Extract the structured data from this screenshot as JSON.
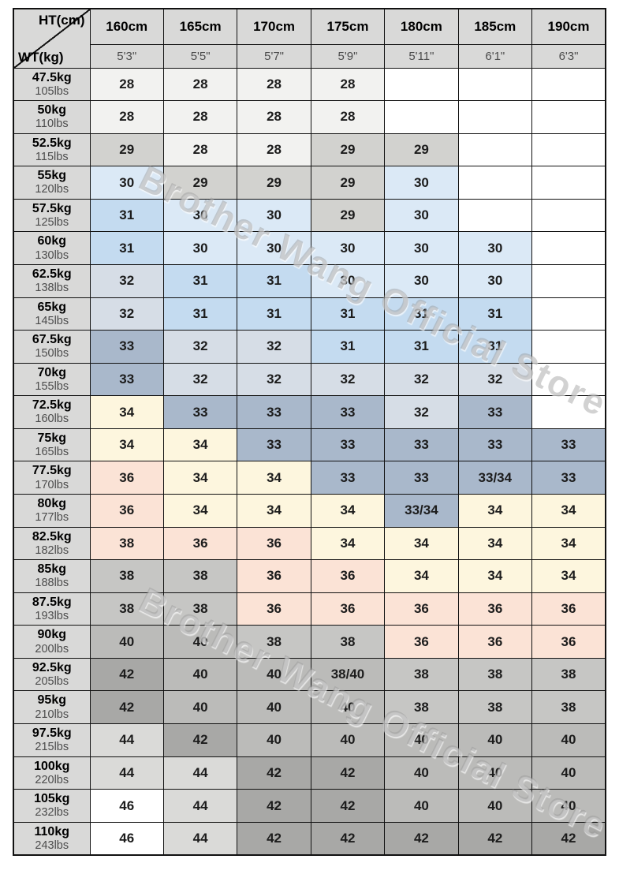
{
  "watermark": {
    "text": "Brother Wang Official Store"
  },
  "palette": {
    "blank": "#ffffff",
    "s28": "#f2f2f0",
    "s29": "#d2d2cf",
    "s30": "#dbe9f6",
    "s31": "#c4dbf0",
    "s32": "#d6dde6",
    "s33": "#a9b8cb",
    "s34": "#fdf6de",
    "s36": "#fbe3d6",
    "g38": "#c6c6c4",
    "g40": "#bbbbb9",
    "g42": "#a8a8a6",
    "g44": "#dadad8",
    "wht": "#ffffff",
    "header_gray": "#d9d9d8"
  },
  "chart_data": {
    "type": "table",
    "title": "Height / Weight size chart",
    "corner": {
      "top": "HT(cm)",
      "bottom": "WT(kg)"
    },
    "columns": [
      {
        "cm": "160cm",
        "ft": "5'3\""
      },
      {
        "cm": "165cm",
        "ft": "5'5\""
      },
      {
        "cm": "170cm",
        "ft": "5'7\""
      },
      {
        "cm": "175cm",
        "ft": "5'9\""
      },
      {
        "cm": "180cm",
        "ft": "5'11\""
      },
      {
        "cm": "185cm",
        "ft": "6'1\""
      },
      {
        "cm": "190cm",
        "ft": "6'3\""
      }
    ],
    "rows": [
      {
        "kg": "47.5kg",
        "lbs": "105lbs",
        "cells": [
          {
            "v": "28",
            "c": "s28"
          },
          {
            "v": "28",
            "c": "s28"
          },
          {
            "v": "28",
            "c": "s28"
          },
          {
            "v": "28",
            "c": "s28"
          },
          {
            "v": "",
            "c": "blank"
          },
          {
            "v": "",
            "c": "blank"
          },
          {
            "v": "",
            "c": "blank"
          }
        ]
      },
      {
        "kg": "50kg",
        "lbs": "110lbs",
        "cells": [
          {
            "v": "28",
            "c": "s28"
          },
          {
            "v": "28",
            "c": "s28"
          },
          {
            "v": "28",
            "c": "s28"
          },
          {
            "v": "28",
            "c": "s28"
          },
          {
            "v": "",
            "c": "blank"
          },
          {
            "v": "",
            "c": "blank"
          },
          {
            "v": "",
            "c": "blank"
          }
        ]
      },
      {
        "kg": "52.5kg",
        "lbs": "115lbs",
        "cells": [
          {
            "v": "29",
            "c": "s29"
          },
          {
            "v": "28",
            "c": "s28"
          },
          {
            "v": "28",
            "c": "s28"
          },
          {
            "v": "29",
            "c": "s29"
          },
          {
            "v": "29",
            "c": "s29"
          },
          {
            "v": "",
            "c": "blank"
          },
          {
            "v": "",
            "c": "blank"
          }
        ]
      },
      {
        "kg": "55kg",
        "lbs": "120lbs",
        "cells": [
          {
            "v": "30",
            "c": "s30"
          },
          {
            "v": "29",
            "c": "s29"
          },
          {
            "v": "29",
            "c": "s29"
          },
          {
            "v": "29",
            "c": "s29"
          },
          {
            "v": "30",
            "c": "s30"
          },
          {
            "v": "",
            "c": "blank"
          },
          {
            "v": "",
            "c": "blank"
          }
        ]
      },
      {
        "kg": "57.5kg",
        "lbs": "125lbs",
        "cells": [
          {
            "v": "31",
            "c": "s31"
          },
          {
            "v": "30",
            "c": "s30"
          },
          {
            "v": "30",
            "c": "s30"
          },
          {
            "v": "29",
            "c": "s29"
          },
          {
            "v": "30",
            "c": "s30"
          },
          {
            "v": "",
            "c": "blank"
          },
          {
            "v": "",
            "c": "blank"
          }
        ]
      },
      {
        "kg": "60kg",
        "lbs": "130lbs",
        "cells": [
          {
            "v": "31",
            "c": "s31"
          },
          {
            "v": "30",
            "c": "s30"
          },
          {
            "v": "30",
            "c": "s30"
          },
          {
            "v": "30",
            "c": "s30"
          },
          {
            "v": "30",
            "c": "s30"
          },
          {
            "v": "30",
            "c": "s30"
          },
          {
            "v": "",
            "c": "blank"
          }
        ]
      },
      {
        "kg": "62.5kg",
        "lbs": "138lbs",
        "cells": [
          {
            "v": "32",
            "c": "s32"
          },
          {
            "v": "31",
            "c": "s31"
          },
          {
            "v": "31",
            "c": "s31"
          },
          {
            "v": "30",
            "c": "s30"
          },
          {
            "v": "30",
            "c": "s30"
          },
          {
            "v": "30",
            "c": "s30"
          },
          {
            "v": "",
            "c": "blank"
          }
        ]
      },
      {
        "kg": "65kg",
        "lbs": "145lbs",
        "cells": [
          {
            "v": "32",
            "c": "s32"
          },
          {
            "v": "31",
            "c": "s31"
          },
          {
            "v": "31",
            "c": "s31"
          },
          {
            "v": "31",
            "c": "s31"
          },
          {
            "v": "31",
            "c": "s31"
          },
          {
            "v": "31",
            "c": "s31"
          },
          {
            "v": "",
            "c": "blank"
          }
        ]
      },
      {
        "kg": "67.5kg",
        "lbs": "150lbs",
        "cells": [
          {
            "v": "33",
            "c": "s33"
          },
          {
            "v": "32",
            "c": "s32"
          },
          {
            "v": "32",
            "c": "s32"
          },
          {
            "v": "31",
            "c": "s31"
          },
          {
            "v": "31",
            "c": "s31"
          },
          {
            "v": "31",
            "c": "s31"
          },
          {
            "v": "",
            "c": "blank"
          }
        ]
      },
      {
        "kg": "70kg",
        "lbs": "155lbs",
        "cells": [
          {
            "v": "33",
            "c": "s33"
          },
          {
            "v": "32",
            "c": "s32"
          },
          {
            "v": "32",
            "c": "s32"
          },
          {
            "v": "32",
            "c": "s32"
          },
          {
            "v": "32",
            "c": "s32"
          },
          {
            "v": "32",
            "c": "s32"
          },
          {
            "v": "",
            "c": "blank"
          }
        ]
      },
      {
        "kg": "72.5kg",
        "lbs": "160lbs",
        "cells": [
          {
            "v": "34",
            "c": "s34"
          },
          {
            "v": "33",
            "c": "s33"
          },
          {
            "v": "33",
            "c": "s33"
          },
          {
            "v": "33",
            "c": "s33"
          },
          {
            "v": "32",
            "c": "s32"
          },
          {
            "v": "33",
            "c": "s33"
          },
          {
            "v": "",
            "c": "blank"
          }
        ]
      },
      {
        "kg": "75kg",
        "lbs": "165lbs",
        "cells": [
          {
            "v": "34",
            "c": "s34"
          },
          {
            "v": "34",
            "c": "s34"
          },
          {
            "v": "33",
            "c": "s33"
          },
          {
            "v": "33",
            "c": "s33"
          },
          {
            "v": "33",
            "c": "s33"
          },
          {
            "v": "33",
            "c": "s33"
          },
          {
            "v": "33",
            "c": "s33"
          }
        ]
      },
      {
        "kg": "77.5kg",
        "lbs": "170lbs",
        "cells": [
          {
            "v": "36",
            "c": "s36"
          },
          {
            "v": "34",
            "c": "s34"
          },
          {
            "v": "34",
            "c": "s34"
          },
          {
            "v": "33",
            "c": "s33"
          },
          {
            "v": "33",
            "c": "s33"
          },
          {
            "v": "33/34",
            "c": "s33"
          },
          {
            "v": "33",
            "c": "s33"
          }
        ]
      },
      {
        "kg": "80kg",
        "lbs": "177lbs",
        "cells": [
          {
            "v": "36",
            "c": "s36"
          },
          {
            "v": "34",
            "c": "s34"
          },
          {
            "v": "34",
            "c": "s34"
          },
          {
            "v": "34",
            "c": "s34"
          },
          {
            "v": "33/34",
            "c": "s33"
          },
          {
            "v": "34",
            "c": "s34"
          },
          {
            "v": "34",
            "c": "s34"
          }
        ]
      },
      {
        "kg": "82.5kg",
        "lbs": "182lbs",
        "cells": [
          {
            "v": "38",
            "c": "s36"
          },
          {
            "v": "36",
            "c": "s36"
          },
          {
            "v": "36",
            "c": "s36"
          },
          {
            "v": "34",
            "c": "s34"
          },
          {
            "v": "34",
            "c": "s34"
          },
          {
            "v": "34",
            "c": "s34"
          },
          {
            "v": "34",
            "c": "s34"
          }
        ]
      },
      {
        "kg": "85kg",
        "lbs": "188lbs",
        "cells": [
          {
            "v": "38",
            "c": "g38"
          },
          {
            "v": "38",
            "c": "g38"
          },
          {
            "v": "36",
            "c": "s36"
          },
          {
            "v": "36",
            "c": "s36"
          },
          {
            "v": "34",
            "c": "s34"
          },
          {
            "v": "34",
            "c": "s34"
          },
          {
            "v": "34",
            "c": "s34"
          }
        ]
      },
      {
        "kg": "87.5kg",
        "lbs": "193lbs",
        "cells": [
          {
            "v": "38",
            "c": "g38"
          },
          {
            "v": "38",
            "c": "g38"
          },
          {
            "v": "36",
            "c": "s36"
          },
          {
            "v": "36",
            "c": "s36"
          },
          {
            "v": "36",
            "c": "s36"
          },
          {
            "v": "36",
            "c": "s36"
          },
          {
            "v": "36",
            "c": "s36"
          }
        ]
      },
      {
        "kg": "90kg",
        "lbs": "200lbs",
        "cells": [
          {
            "v": "40",
            "c": "g40"
          },
          {
            "v": "40",
            "c": "g40"
          },
          {
            "v": "38",
            "c": "g38"
          },
          {
            "v": "38",
            "c": "g38"
          },
          {
            "v": "36",
            "c": "s36"
          },
          {
            "v": "36",
            "c": "s36"
          },
          {
            "v": "36",
            "c": "s36"
          }
        ]
      },
      {
        "kg": "92.5kg",
        "lbs": "205lbs",
        "cells": [
          {
            "v": "42",
            "c": "g42"
          },
          {
            "v": "40",
            "c": "g40"
          },
          {
            "v": "40",
            "c": "g40"
          },
          {
            "v": "38/40",
            "c": "g40"
          },
          {
            "v": "38",
            "c": "g38"
          },
          {
            "v": "38",
            "c": "g38"
          },
          {
            "v": "38",
            "c": "g38"
          }
        ]
      },
      {
        "kg": "95kg",
        "lbs": "210lbs",
        "cells": [
          {
            "v": "42",
            "c": "g42"
          },
          {
            "v": "40",
            "c": "g40"
          },
          {
            "v": "40",
            "c": "g40"
          },
          {
            "v": "40",
            "c": "g40"
          },
          {
            "v": "38",
            "c": "g38"
          },
          {
            "v": "38",
            "c": "g38"
          },
          {
            "v": "38",
            "c": "g38"
          }
        ]
      },
      {
        "kg": "97.5kg",
        "lbs": "215lbs",
        "cells": [
          {
            "v": "44",
            "c": "g44"
          },
          {
            "v": "42",
            "c": "g42"
          },
          {
            "v": "40",
            "c": "g40"
          },
          {
            "v": "40",
            "c": "g40"
          },
          {
            "v": "40",
            "c": "g40"
          },
          {
            "v": "40",
            "c": "g40"
          },
          {
            "v": "40",
            "c": "g40"
          }
        ]
      },
      {
        "kg": "100kg",
        "lbs": "220lbs",
        "cells": [
          {
            "v": "44",
            "c": "g44"
          },
          {
            "v": "44",
            "c": "g44"
          },
          {
            "v": "42",
            "c": "g42"
          },
          {
            "v": "42",
            "c": "g42"
          },
          {
            "v": "40",
            "c": "g40"
          },
          {
            "v": "40",
            "c": "g40"
          },
          {
            "v": "40",
            "c": "g40"
          }
        ]
      },
      {
        "kg": "105kg",
        "lbs": "232lbs",
        "cells": [
          {
            "v": "46",
            "c": "wht"
          },
          {
            "v": "44",
            "c": "g44"
          },
          {
            "v": "42",
            "c": "g42"
          },
          {
            "v": "42",
            "c": "g42"
          },
          {
            "v": "40",
            "c": "g40"
          },
          {
            "v": "40",
            "c": "g40"
          },
          {
            "v": "40",
            "c": "g40"
          }
        ]
      },
      {
        "kg": "110kg",
        "lbs": "243lbs",
        "cells": [
          {
            "v": "46",
            "c": "wht"
          },
          {
            "v": "44",
            "c": "g44"
          },
          {
            "v": "42",
            "c": "g42"
          },
          {
            "v": "42",
            "c": "g42"
          },
          {
            "v": "42",
            "c": "g42"
          },
          {
            "v": "42",
            "c": "g42"
          },
          {
            "v": "42",
            "c": "g42"
          }
        ]
      }
    ]
  }
}
